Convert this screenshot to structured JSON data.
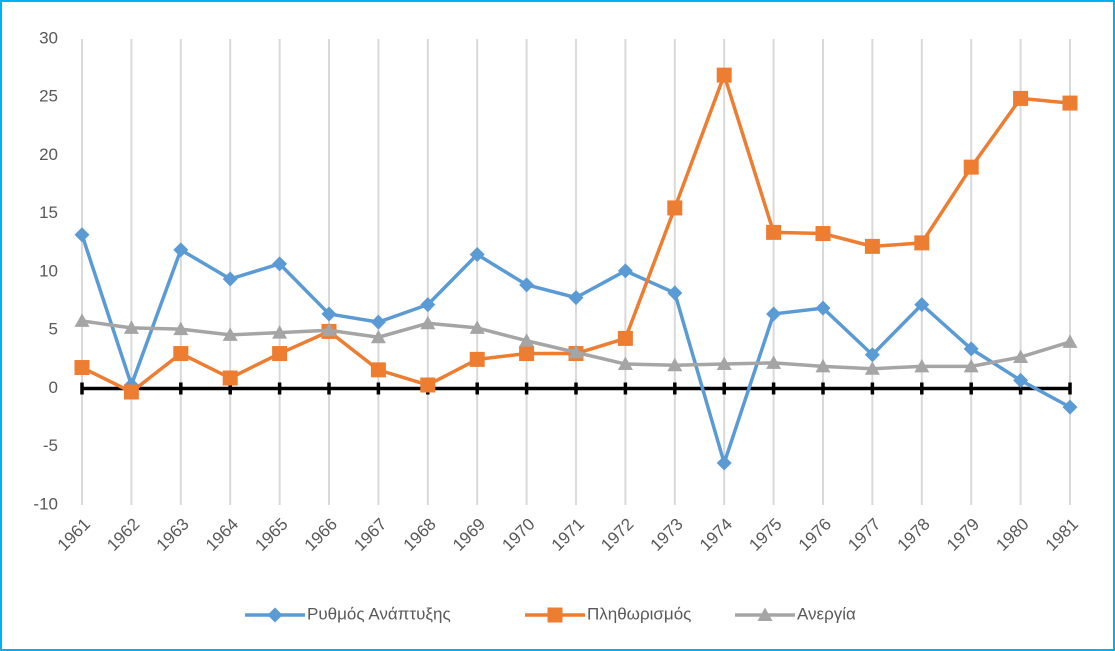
{
  "chart_data": {
    "type": "line",
    "categories": [
      "1961",
      "1962",
      "1963",
      "1964",
      "1965",
      "1966",
      "1967",
      "1968",
      "1969",
      "1970",
      "1971",
      "1972",
      "1973",
      "1974",
      "1975",
      "1976",
      "1977",
      "1978",
      "1979",
      "1980",
      "1981"
    ],
    "series": [
      {
        "name": "Ρυθμός Ανάπτυξης",
        "color": "#5b9bd5",
        "marker": "diamond",
        "values": [
          13.2,
          0.3,
          11.9,
          9.4,
          10.7,
          6.4,
          5.7,
          7.2,
          11.5,
          8.9,
          7.8,
          10.1,
          8.2,
          -6.4,
          6.4,
          6.9,
          2.9,
          7.2,
          3.4,
          0.7,
          -1.6
        ]
      },
      {
        "name": "Πληθωρισμός",
        "color": "#ed7d31",
        "marker": "square",
        "values": [
          1.8,
          -0.3,
          3.0,
          0.9,
          3.0,
          4.9,
          1.6,
          0.3,
          2.5,
          3.0,
          3.0,
          4.3,
          15.5,
          26.9,
          13.4,
          13.3,
          12.2,
          12.5,
          19.0,
          24.9,
          24.5
        ]
      },
      {
        "name": "Ανεργία",
        "color": "#a5a5a5",
        "marker": "triangle",
        "values": [
          5.8,
          5.2,
          5.1,
          4.6,
          4.8,
          5.0,
          4.4,
          5.6,
          5.2,
          4.1,
          3.1,
          2.1,
          2.0,
          2.1,
          2.2,
          1.9,
          1.7,
          1.9,
          1.9,
          2.7,
          4.0
        ]
      }
    ],
    "ylim": [
      -10,
      30
    ],
    "yticks": [
      -10,
      -5,
      0,
      5,
      10,
      15,
      20,
      25,
      30
    ],
    "xgrid": true,
    "legend": "bottom"
  }
}
